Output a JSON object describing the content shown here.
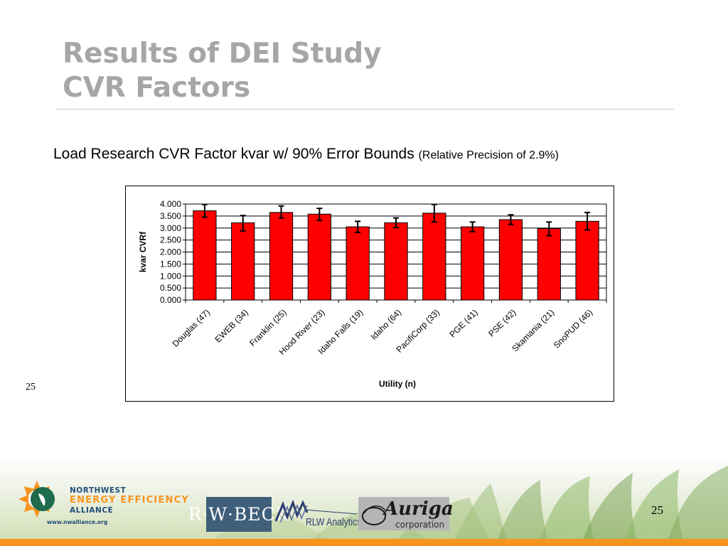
{
  "slide": {
    "title_line1": "Results of DEI Study",
    "title_line2": "CVR Factors",
    "subtitle_main": "Load Research CVR Factor kvar w/ 90% Error Bounds",
    "subtitle_small": "(Relative Precision of 2.9%)",
    "page_number_left": "25",
    "page_number_right": "25"
  },
  "logos": {
    "neea_line1": "NORTHWEST",
    "neea_line2": "ENERGY EFFICIENCY",
    "neea_line3": "ALLIANCE",
    "neea_url": "www.nwalliance.org",
    "rwbeck": "R·W·BECK",
    "rlw": "RLW Analytics",
    "auriga_name": "Auriga",
    "auriga_sub": "corporation"
  },
  "colors": {
    "bar": "#ff0000",
    "title": "#a6a6a6",
    "accent_orange": "#f7941d",
    "neea_blue": "#1f4e79"
  },
  "chart_data": {
    "type": "bar",
    "title": "",
    "xlabel": "Utility (n)",
    "ylabel": "kvar CVRf",
    "ylim": [
      0,
      4
    ],
    "yticks": [
      "0.000",
      "0.500",
      "1.000",
      "1.500",
      "2.000",
      "2.500",
      "3.000",
      "3.500",
      "4.000"
    ],
    "grid": true,
    "legend": "none",
    "categories": [
      "Douglas (47)",
      "EWEB (34)",
      "Franklin (25)",
      "Hood River (23)",
      "Idaho Falls (19)",
      "Idaho (64)",
      "PacifiCorp (33)",
      "PGE (41)",
      "PSE (42)",
      "Skamania (21)",
      "SnoPUD (46)"
    ],
    "values": [
      3.72,
      3.22,
      3.65,
      3.58,
      3.05,
      3.22,
      3.62,
      3.05,
      3.35,
      2.98,
      3.28
    ],
    "error_low": [
      3.45,
      2.88,
      3.42,
      3.32,
      2.82,
      3.02,
      3.25,
      2.85,
      3.15,
      2.68,
      2.92
    ],
    "error_high": [
      3.98,
      3.52,
      3.92,
      3.82,
      3.28,
      3.42,
      3.98,
      3.25,
      3.55,
      3.25,
      3.65
    ]
  }
}
